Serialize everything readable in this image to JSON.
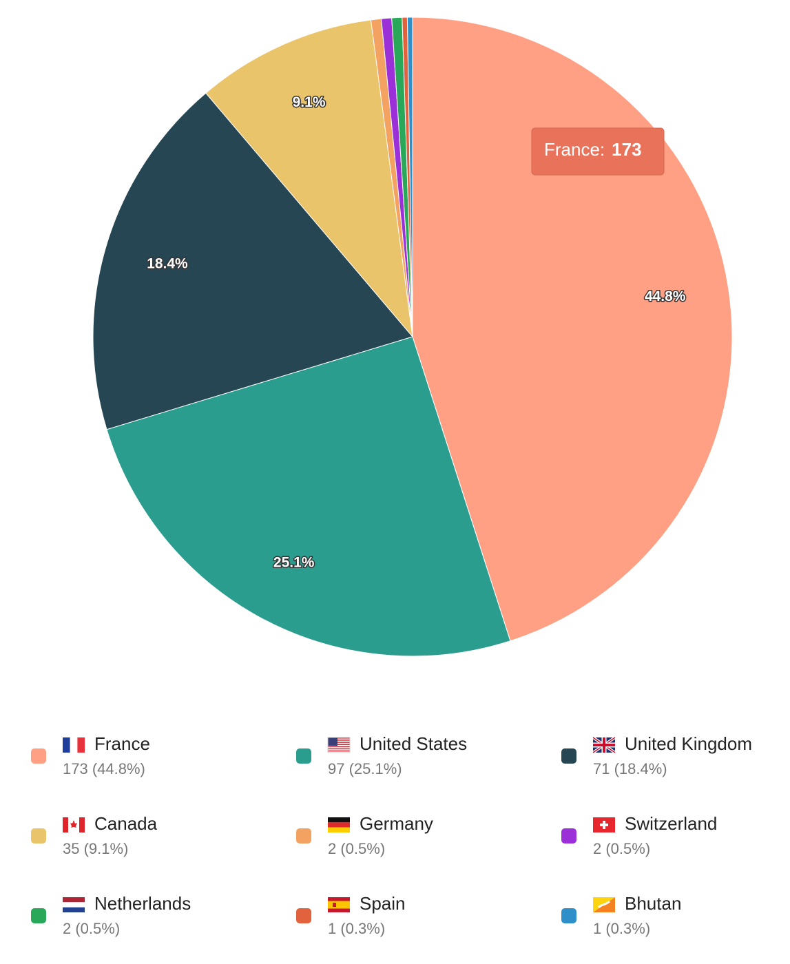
{
  "chart_data": {
    "type": "pie",
    "categories": [
      "France",
      "United States",
      "United Kingdom",
      "Canada",
      "Germany",
      "Switzerland",
      "Netherlands",
      "Spain",
      "Bhutan"
    ],
    "values": [
      173,
      97,
      71,
      35,
      2,
      2,
      2,
      1,
      1
    ],
    "percent_labels": [
      "44.8%",
      "25.1%",
      "18.4%",
      "9.1%",
      "0.5%",
      "0.5%",
      "0.5%",
      "0.3%",
      "0.3%"
    ],
    "value_labels": [
      "173 (44.8%)",
      "97 (25.1%)",
      "71 (18.4%)",
      "35 (9.1%)",
      "2 (0.5%)",
      "2 (0.5%)",
      "2 (0.5%)",
      "1 (0.3%)",
      "1 (0.3%)"
    ],
    "colors": [
      "#ffa084",
      "#2a9d8f",
      "#264653",
      "#e9c46a",
      "#f4a261",
      "#9b2fd8",
      "#2aa85a",
      "#e2623e",
      "#2e8fc9"
    ],
    "tooltip": {
      "label": "France:",
      "value": 173
    }
  }
}
